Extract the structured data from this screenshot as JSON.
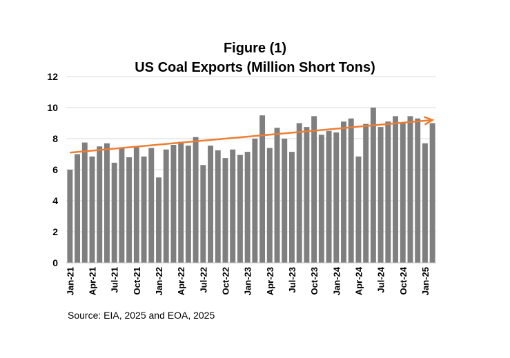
{
  "chart_data": {
    "type": "bar",
    "title": [
      "Figure (1)",
      "US Coal Exports (Million Short Tons)"
    ],
    "source": "Source: EIA, 2025 and EOA, 2025",
    "ylim": [
      0,
      12
    ],
    "yticks": [
      0,
      2,
      4,
      6,
      8,
      10,
      12
    ],
    "grid": true,
    "xtick_labels": [
      "Jan-21",
      "Apr-21",
      "Jul-21",
      "Oct-21",
      "Jan-22",
      "Apr-22",
      "Jul-22",
      "Oct-22",
      "Jan-23",
      "Apr-23",
      "Jul-23",
      "Oct-23",
      "Jan-24",
      "Apr-24",
      "Jul-24",
      "Oct-24",
      "Jan-25"
    ],
    "categories": [
      "Jan-21",
      "Feb-21",
      "Mar-21",
      "Apr-21",
      "May-21",
      "Jun-21",
      "Jul-21",
      "Aug-21",
      "Sep-21",
      "Oct-21",
      "Nov-21",
      "Dec-21",
      "Jan-22",
      "Feb-22",
      "Mar-22",
      "Apr-22",
      "May-22",
      "Jun-22",
      "Jul-22",
      "Aug-22",
      "Sep-22",
      "Oct-22",
      "Nov-22",
      "Dec-22",
      "Jan-23",
      "Feb-23",
      "Mar-23",
      "Apr-23",
      "May-23",
      "Jun-23",
      "Jul-23",
      "Aug-23",
      "Sep-23",
      "Oct-23",
      "Nov-23",
      "Dec-23",
      "Jan-24",
      "Feb-24",
      "Mar-24",
      "Apr-24",
      "May-24",
      "Jun-24",
      "Jul-24",
      "Aug-24",
      "Sep-24",
      "Oct-24",
      "Nov-24",
      "Dec-24",
      "Jan-25",
      "Feb-25"
    ],
    "values": [
      6.0,
      7.0,
      7.75,
      6.85,
      7.5,
      7.7,
      6.45,
      7.4,
      6.8,
      7.5,
      6.85,
      7.4,
      5.5,
      7.3,
      7.6,
      7.8,
      7.55,
      8.1,
      6.3,
      7.55,
      7.25,
      6.75,
      7.3,
      6.95,
      7.15,
      8.0,
      9.5,
      7.4,
      8.7,
      8.0,
      7.15,
      9.0,
      8.75,
      9.45,
      8.25,
      8.5,
      8.4,
      9.1,
      9.3,
      6.85,
      8.95,
      10.0,
      8.75,
      9.1,
      9.45,
      9.0,
      9.45,
      9.3,
      7.7,
      9.0
    ],
    "bar_color": "#7f7f7f",
    "trend": {
      "start": 7.1,
      "end": 9.2,
      "color": "#ed7d31"
    }
  }
}
